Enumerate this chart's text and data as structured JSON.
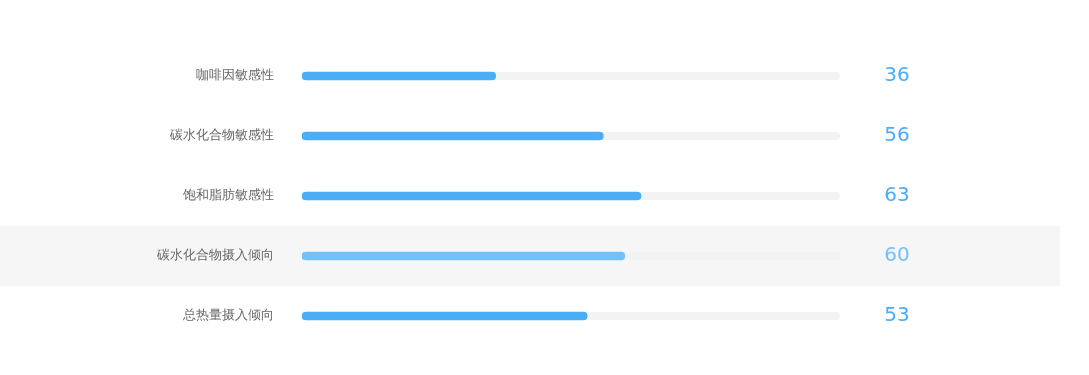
{
  "chart_data": {
    "type": "bar",
    "orientation": "horizontal",
    "categories": [
      "咖啡因敏感性",
      "碳水化合物敏感性",
      "饱和脂肪敏感性",
      "碳水化合物摄入倾向",
      "总热量摄入倾向"
    ],
    "values": [
      36,
      56,
      63,
      60,
      53
    ],
    "colors": [
      "#4cadf7",
      "#4cadf7",
      "#4cadf7",
      "#73c0f9",
      "#4cadf7"
    ],
    "bands": [
      {
        "axis": "y",
        "from": "碳水化合物摄入倾向",
        "to": "碳水化合物摄入倾向",
        "color": "#f6f6f6"
      }
    ],
    "xlim": [
      0,
      100
    ],
    "tick_labels": "y",
    "legend": false,
    "data_labels": true
  }
}
